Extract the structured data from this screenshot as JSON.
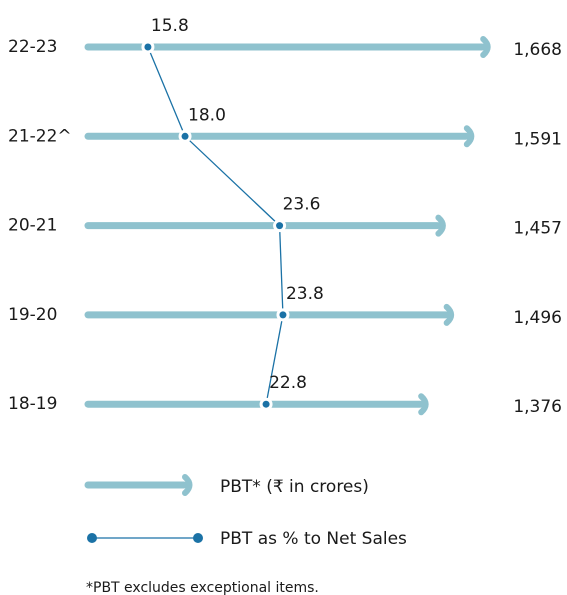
{
  "chart_data": {
    "type": "bar",
    "orientation": "horizontal",
    "categories": [
      "22-23",
      "21-22^",
      "20-21",
      "19-20",
      "18-19"
    ],
    "series": [
      {
        "name": "PBT* (₹ in crores)",
        "color": "#8fc2ce",
        "values": [
          1668,
          1591,
          1457,
          1496,
          1376
        ],
        "value_labels": [
          "1,668",
          "1,591",
          "1,457",
          "1,496",
          "1,376"
        ]
      },
      {
        "name": "PBT as % to Net Sales",
        "color": "#1b72a6",
        "values": [
          15.8,
          18,
          23.6,
          23.8,
          22.8
        ],
        "value_labels": [
          "15.8",
          "18.0",
          "23.6",
          "23.8",
          "22.8"
        ],
        "axis": "x2"
      }
    ],
    "xlim": [
      -235,
      1700
    ],
    "x2lim": [
      12.25,
      36.6
    ],
    "footnote": "*PBT excludes exceptional items."
  }
}
